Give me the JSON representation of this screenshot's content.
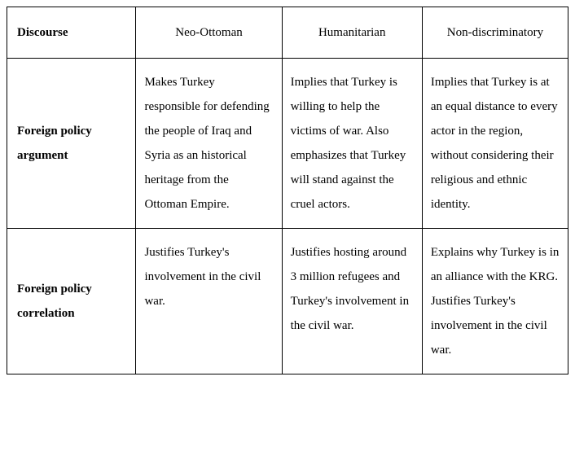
{
  "table": {
    "columns": [
      {
        "label": "Discourse",
        "width": "23%",
        "align": "left",
        "bold": true
      },
      {
        "label": "Neo-Ottoman",
        "width": "26%",
        "align": "center",
        "bold": false
      },
      {
        "label": "Humanitarian",
        "width": "25%",
        "align": "center",
        "bold": false
      },
      {
        "label": "Non-discriminatory",
        "width": "26%",
        "align": "center",
        "bold": false
      }
    ],
    "rows": [
      {
        "label": "Foreign policy argument",
        "cells": [
          "Makes Turkey responsible for defending the people of Iraq and Syria as an historical heritage from the Ottoman Empire.",
          "Implies that Turkey is willing to help the victims of war. Also emphasizes that Turkey will stand against the cruel actors.",
          "Implies that Turkey is at an equal distance to every actor in the region, without considering their religious and ethnic identity."
        ]
      },
      {
        "label": "Foreign policy correlation",
        "cells": [
          "Justifies Turkey's involvement in the civil war.",
          "Justifies hosting around 3 million refugees and Turkey's involvement in the civil war.",
          "Explains why Turkey is in an alliance with the KRG. Justifies Turkey's involvement in the civil war."
        ]
      }
    ],
    "style": {
      "font_family": "Times New Roman",
      "font_size_pt": 15,
      "line_height": 2.0,
      "border_color": "#000000",
      "background_color": "#ffffff",
      "cell_padding_v": 14,
      "cell_padding_h": 10
    }
  }
}
